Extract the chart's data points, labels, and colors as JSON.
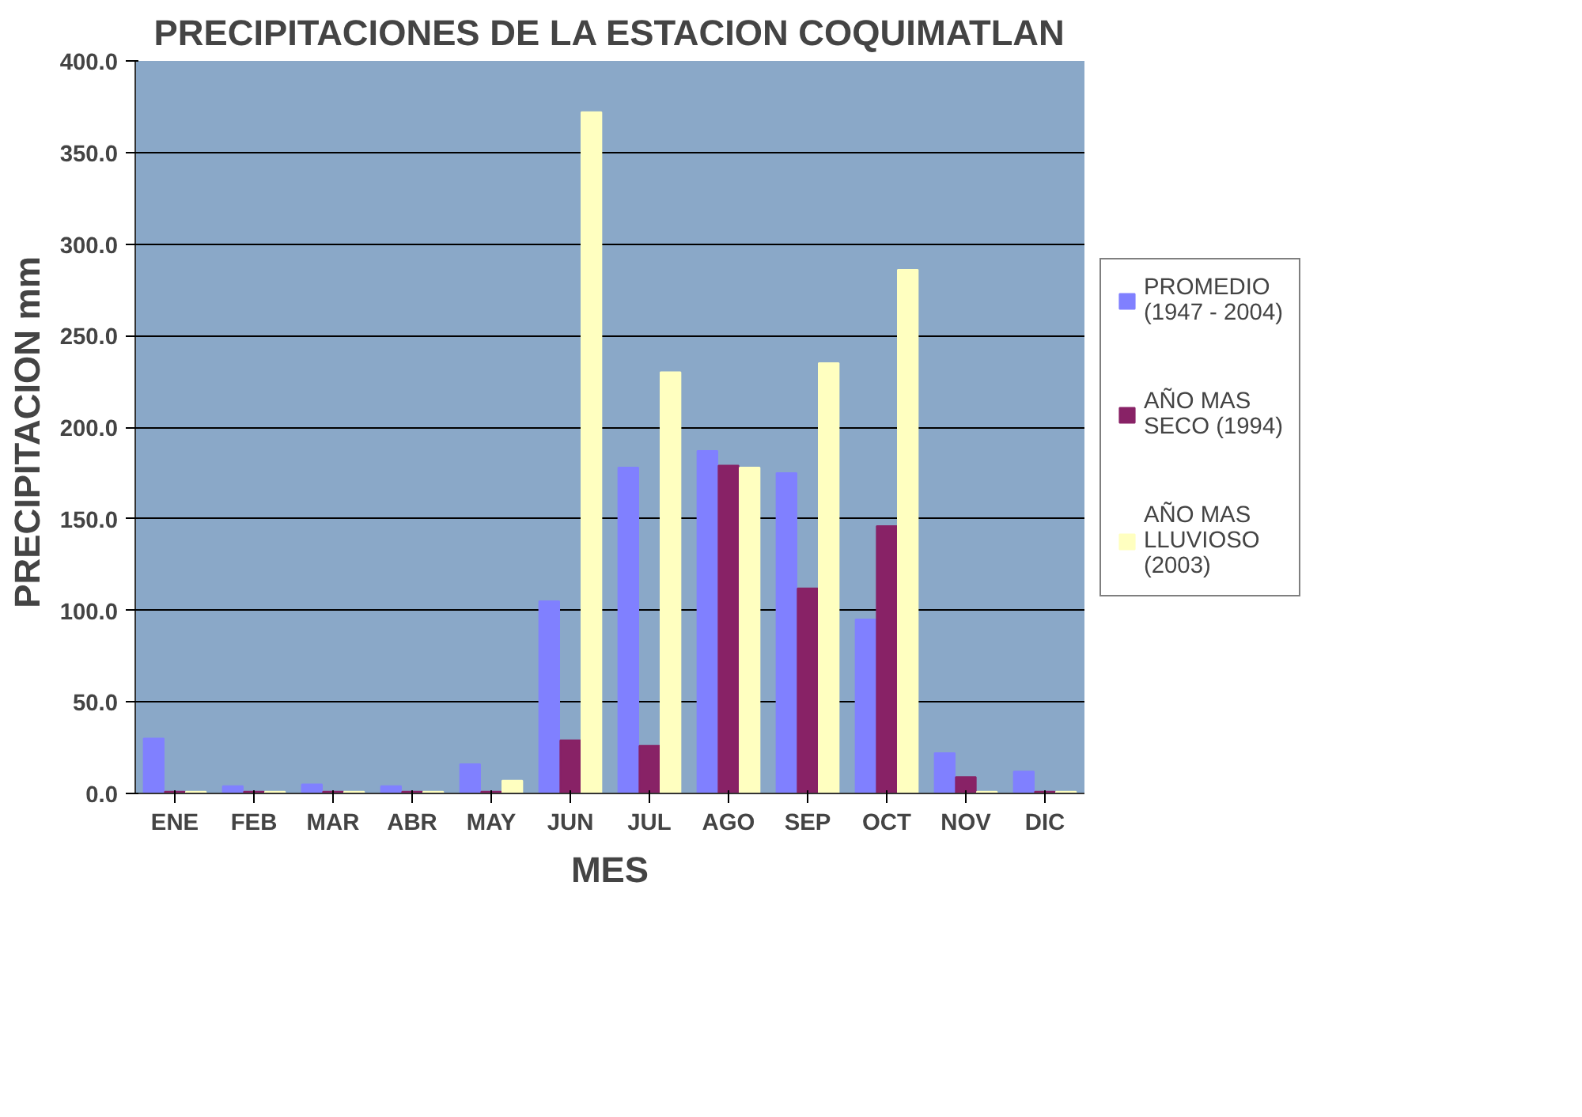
{
  "chart_data": {
    "type": "bar",
    "title": "PRECIPITACIONES DE LA ESTACION COQUIMATLAN",
    "xlabel": "MES",
    "ylabel": "PRECIPITACION  mm",
    "categories": [
      "ENE",
      "FEB",
      "MAR",
      "ABR",
      "MAY",
      "JUN",
      "JUL",
      "AGO",
      "SEP",
      "OCT",
      "NOV",
      "DIC"
    ],
    "series": [
      {
        "name": "PROMEDIO\n(1947 - 2004)",
        "color": "#8080ff",
        "values": [
          30,
          4,
          5,
          4,
          16,
          105,
          178,
          187,
          175,
          95,
          22,
          12
        ]
      },
      {
        "name": "AÑO MAS\nSECO (1994)",
        "color": "#882266",
        "values": [
          1,
          1,
          1,
          1,
          1,
          29,
          26,
          179,
          112,
          146,
          9,
          1
        ]
      },
      {
        "name": "AÑO MAS\nLLUVIOSO\n(2003)",
        "color": "#ffffc0",
        "values": [
          1,
          1,
          1,
          1,
          7,
          372,
          230,
          178,
          235,
          286,
          1,
          1
        ]
      }
    ],
    "ylim": [
      0,
      400
    ],
    "yticks": [
      {
        "value": 0,
        "label": "0.0"
      },
      {
        "value": 50,
        "label": "50.0"
      },
      {
        "value": 100,
        "label": "100.0"
      },
      {
        "value": 150,
        "label": "150.0"
      },
      {
        "value": 200,
        "label": "200.0"
      },
      {
        "value": 250,
        "label": "250.0"
      },
      {
        "value": 300,
        "label": "300.0"
      },
      {
        "value": 350,
        "label": "350.0"
      },
      {
        "value": 400,
        "label": "400.0"
      }
    ],
    "grid": "y",
    "legend": "right"
  }
}
